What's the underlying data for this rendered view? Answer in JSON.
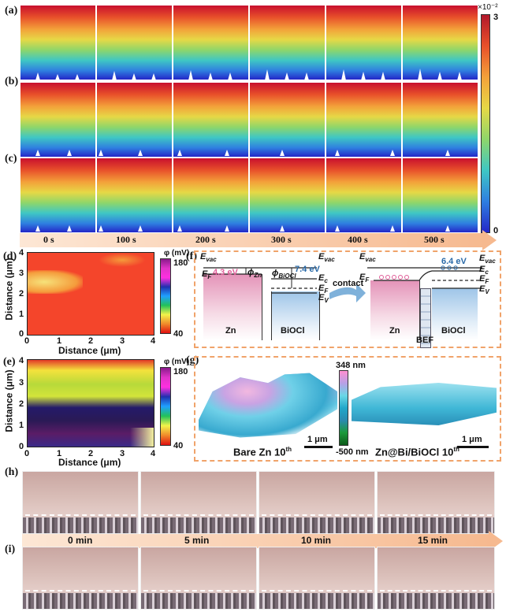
{
  "panels": {
    "a": "(a)",
    "b": "(b)",
    "c": "(c)",
    "d": "(d)",
    "e": "(e)",
    "f": "(f)",
    "g": "(g)",
    "h": "(h)",
    "i": "(i)"
  },
  "colorbar": {
    "exponent": "×10⁻²",
    "max": "3",
    "min": "0"
  },
  "times": [
    "0 s",
    "100 s",
    "200 s",
    "300 s",
    "400 s",
    "500 s"
  ],
  "kpfm": {
    "ylabel": "Distance (μm)",
    "xlabel": "Distance (μm)",
    "xticks": [
      "0",
      "1",
      "2",
      "3",
      "4"
    ],
    "yticks": [
      "4",
      "3",
      "2",
      "1",
      "0"
    ],
    "scale_label": "φ (mV)",
    "scale_max": "180",
    "scale_min": "40"
  },
  "band": {
    "evac": "E",
    "evac_sub": "vac",
    "ef": "E",
    "ef_sub": "F",
    "ec": "E",
    "ec_sub": "c",
    "ev": "E",
    "ev_sub": "V",
    "zn_wf": "4.3 eV",
    "phi_zn": "ϕ",
    "phi_zn_sub": "Zn",
    "phi_bi": "ϕ",
    "phi_bi_sub": "BiOCl",
    "biocl_wf": "7.4 eV",
    "after_wf": "6.4 eV",
    "contact": "contact",
    "zn": "Zn",
    "biocl": "BiOCl",
    "bef": "BEF"
  },
  "afm": {
    "max": "348 nm",
    "min": "-500 nm",
    "scale": "1 μm",
    "left_caption": "Bare Zn 10",
    "left_sup": "th",
    "right_caption": "Zn@Bi/BiOCl 10",
    "right_sup": "th"
  },
  "optical_times": [
    "0 min",
    "5 min",
    "10 min",
    "15 min"
  ]
}
